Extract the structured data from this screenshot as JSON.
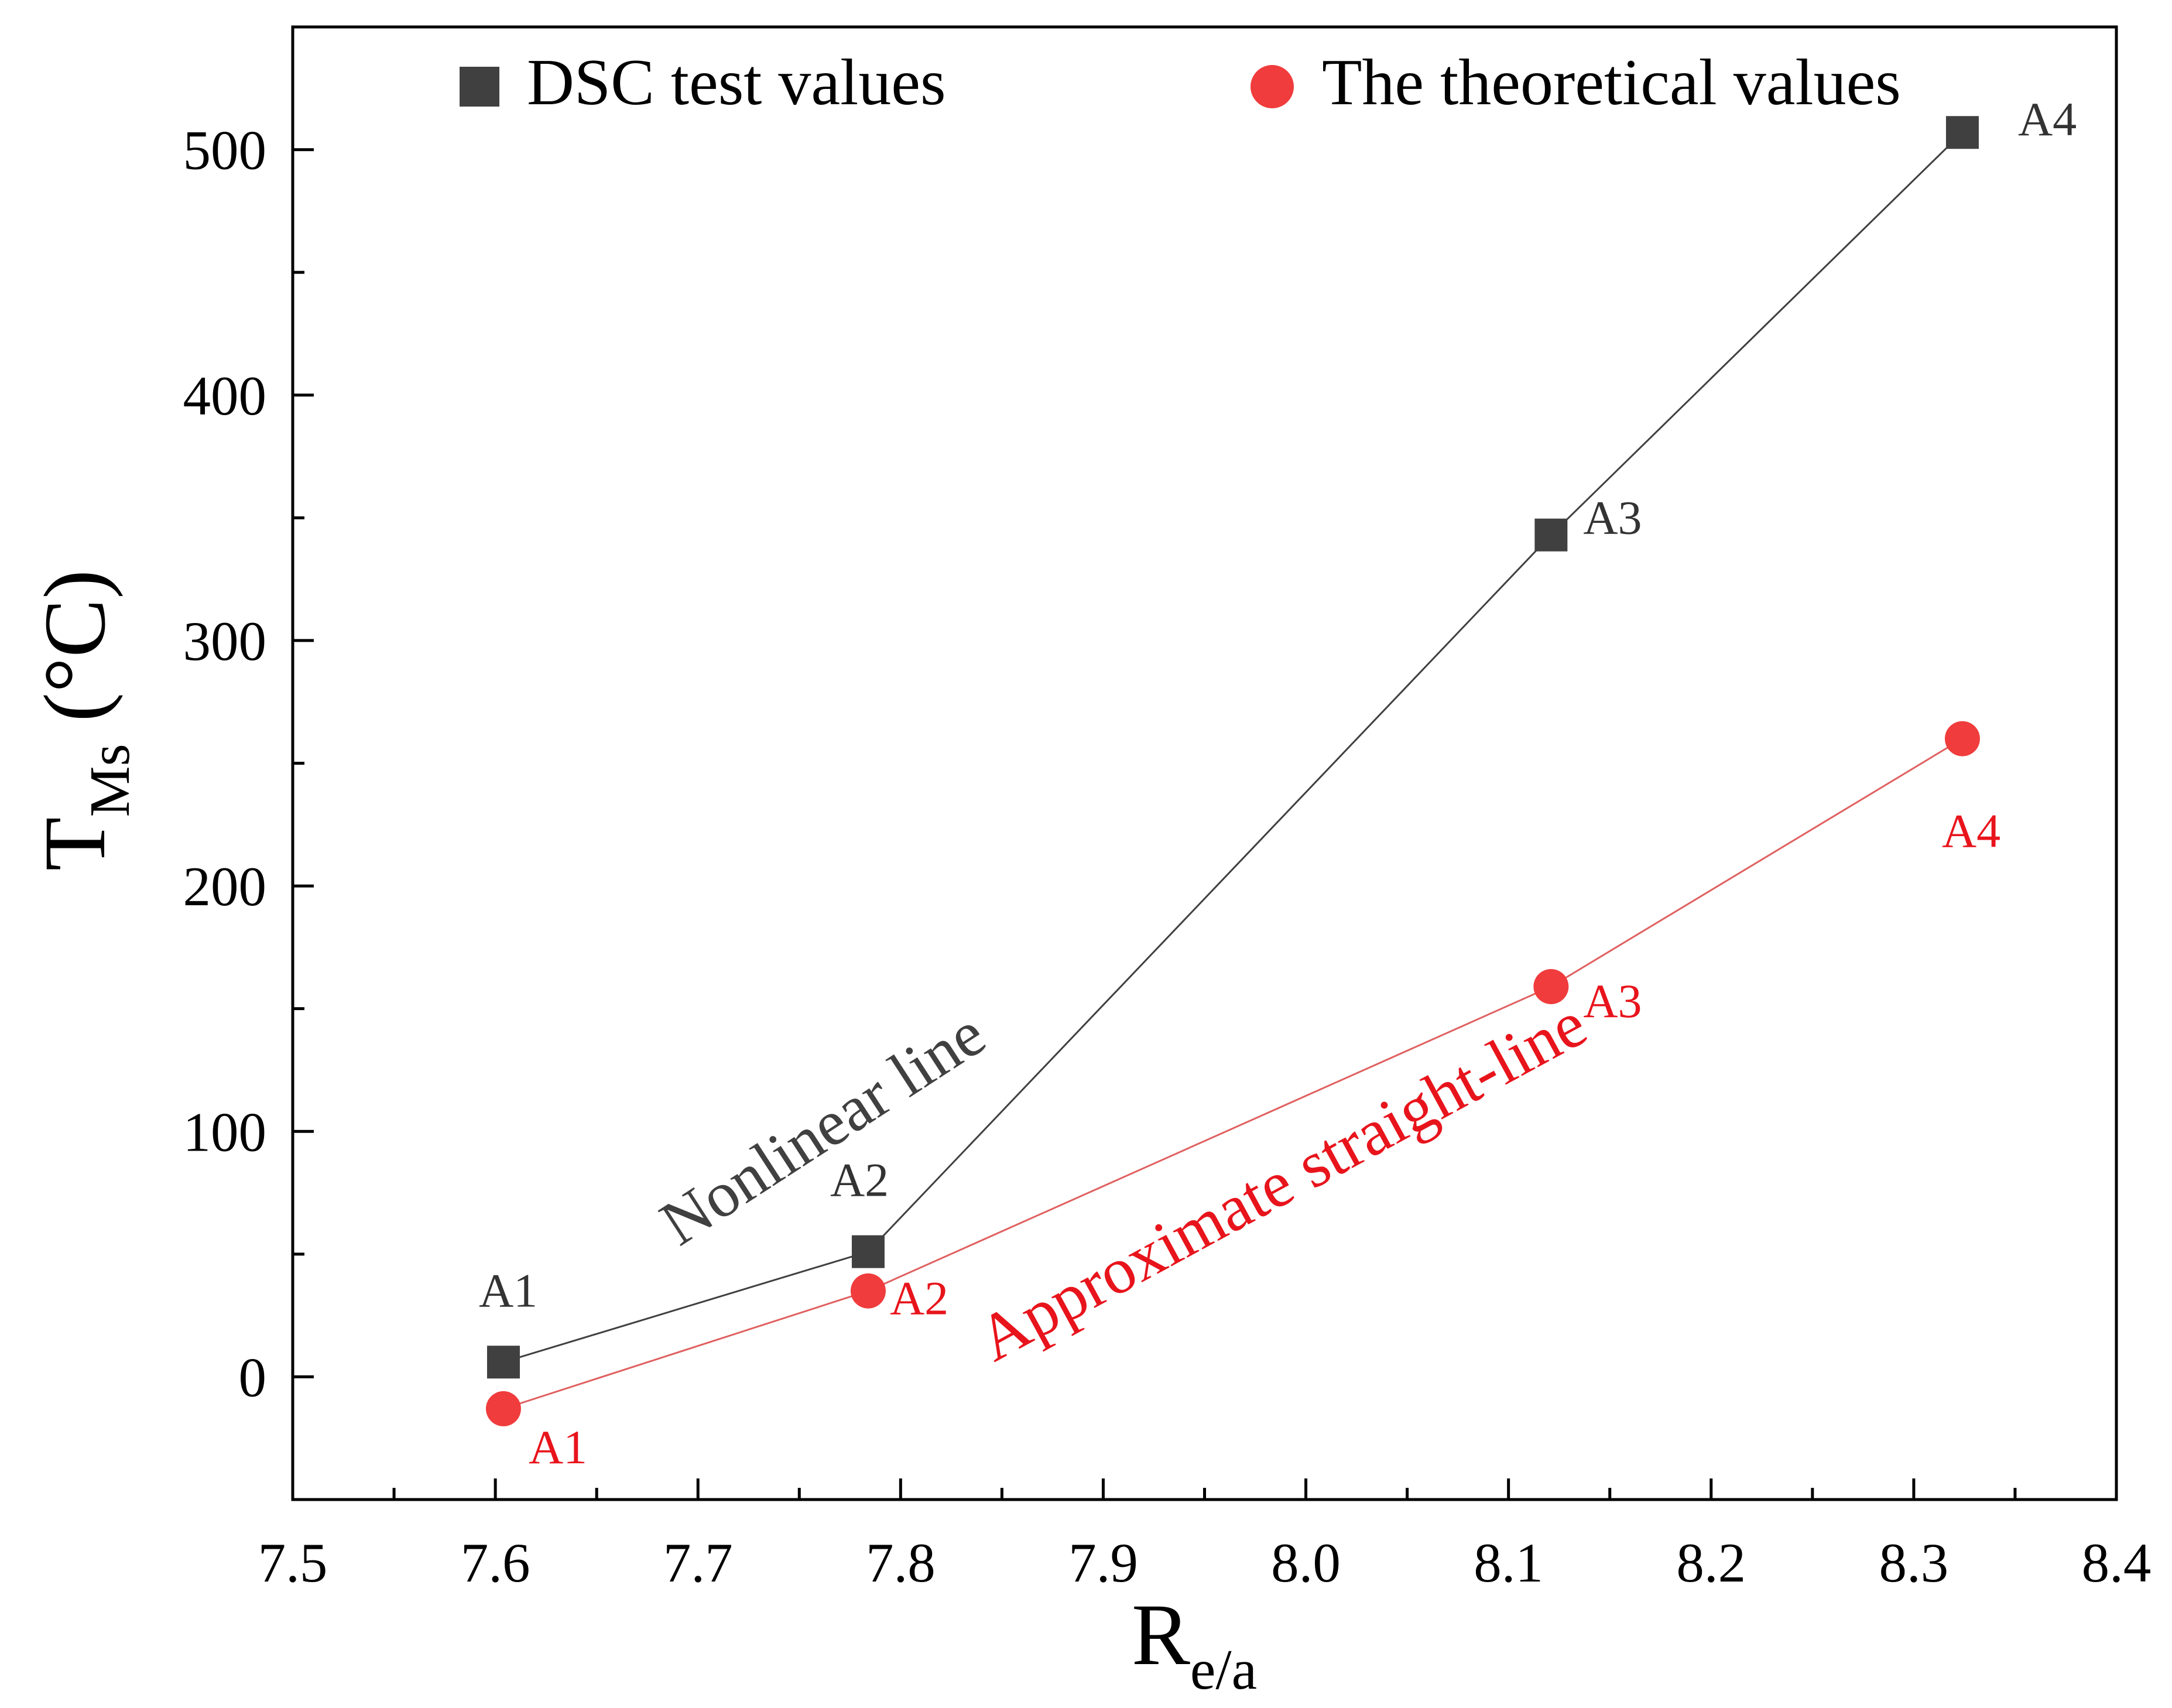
{
  "chart_data": {
    "type": "line",
    "title": "",
    "xlabel": {
      "main": "R",
      "sub": "e/a"
    },
    "ylabel": {
      "main": "T",
      "sub": "Ms",
      "unit": " (°C)"
    },
    "xlim": [
      7.5,
      8.4
    ],
    "ylim": [
      -50,
      550
    ],
    "x_ticks": [
      7.5,
      7.6,
      7.7,
      7.8,
      7.9,
      8.0,
      8.1,
      8.2,
      8.3,
      8.4
    ],
    "x_tick_labels": [
      "7.5",
      "7.6",
      "7.7",
      "7.8",
      "7.9",
      "8.0",
      "8.1",
      "8.2",
      "8.3",
      "8.4"
    ],
    "y_ticks": [
      0,
      100,
      200,
      300,
      400,
      500
    ],
    "y_tick_labels": [
      "0",
      "100",
      "200",
      "300",
      "400",
      "500"
    ],
    "grid": false,
    "legend_position": "top",
    "series": [
      {
        "name": "DSC test values",
        "marker": "square",
        "color": "#404040",
        "line_color": "#404040",
        "x": [
          7.604,
          7.784,
          8.121,
          8.324
        ],
        "y": [
          6,
          51,
          343,
          507
        ],
        "point_labels": [
          "A1",
          "A2",
          "A3",
          "A4"
        ],
        "label_color": "#333333"
      },
      {
        "name": "The theoretical values",
        "marker": "circle",
        "color": "#f03c3c",
        "line_color": "#e06060",
        "x": [
          7.604,
          7.784,
          8.121,
          8.324
        ],
        "y": [
          -13,
          35,
          159,
          260
        ],
        "point_labels": [
          "A1",
          "A2",
          "A3",
          "A4"
        ],
        "label_color": "#e8141c"
      }
    ],
    "annotations": [
      {
        "text": "Nonlinear line",
        "color": "#404040"
      },
      {
        "text": "Approximate straight-line",
        "color": "#e8141c"
      }
    ]
  }
}
